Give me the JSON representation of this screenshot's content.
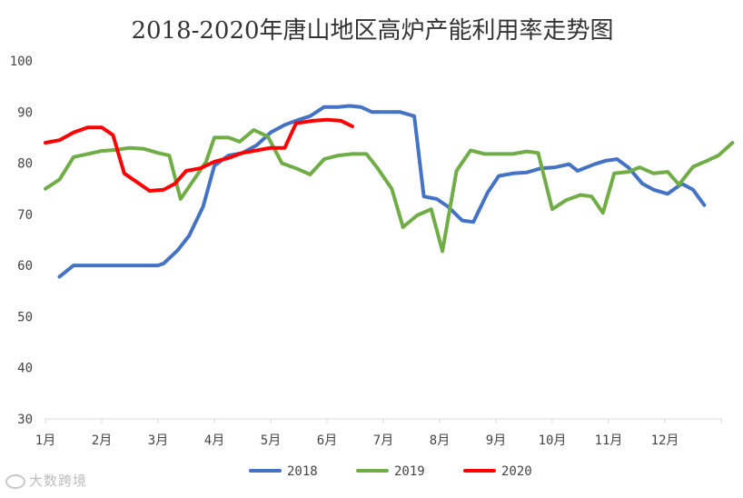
{
  "chart_data": {
    "type": "line",
    "title": "2018-2020年唐山地区高炉产能利用率走势图",
    "xlabel": "",
    "ylabel": "",
    "ylim": [
      30,
      100
    ],
    "yticks": [
      30,
      40,
      50,
      60,
      70,
      80,
      90,
      100
    ],
    "xlim": [
      1,
      13
    ],
    "month_labels": [
      "1月",
      "2月",
      "3月",
      "4月",
      "5月",
      "6月",
      "7月",
      "8月",
      "9月",
      "10月",
      "11月",
      "12月"
    ],
    "grid": false,
    "legend_position": "bottom",
    "series": [
      {
        "name": "2018",
        "color": "#4472c4",
        "points": [
          [
            1.25,
            57.8
          ],
          [
            1.5,
            60.0
          ],
          [
            1.75,
            60.0
          ],
          [
            2.0,
            60.0
          ],
          [
            2.25,
            60.0
          ],
          [
            2.5,
            60.0
          ],
          [
            2.75,
            60.0
          ],
          [
            3.0,
            60.0
          ],
          [
            3.1,
            60.4
          ],
          [
            3.35,
            63.0
          ],
          [
            3.55,
            65.8
          ],
          [
            3.8,
            71.5
          ],
          [
            4.0,
            79.5
          ],
          [
            4.25,
            81.5
          ],
          [
            4.5,
            82.0
          ],
          [
            4.75,
            83.5
          ],
          [
            5.0,
            86.0
          ],
          [
            5.25,
            87.5
          ],
          [
            5.5,
            88.5
          ],
          [
            5.7,
            89.2
          ],
          [
            5.95,
            91.0
          ],
          [
            6.2,
            91.0
          ],
          [
            6.4,
            91.2
          ],
          [
            6.6,
            91.0
          ],
          [
            6.8,
            90.0
          ],
          [
            7.05,
            90.0
          ],
          [
            7.3,
            90.0
          ],
          [
            7.55,
            89.2
          ],
          [
            7.72,
            73.5
          ],
          [
            7.95,
            73.0
          ],
          [
            8.15,
            71.5
          ],
          [
            8.4,
            68.8
          ],
          [
            8.6,
            68.5
          ],
          [
            8.85,
            74.2
          ],
          [
            9.05,
            77.5
          ],
          [
            9.3,
            78.0
          ],
          [
            9.55,
            78.2
          ],
          [
            9.8,
            79.0
          ],
          [
            10.05,
            79.2
          ],
          [
            10.3,
            79.8
          ],
          [
            10.45,
            78.5
          ],
          [
            10.75,
            79.8
          ],
          [
            10.95,
            80.5
          ],
          [
            11.15,
            80.8
          ],
          [
            11.35,
            79.2
          ],
          [
            11.6,
            76.0
          ],
          [
            11.8,
            74.8
          ],
          [
            12.05,
            74.0
          ],
          [
            12.3,
            76.0
          ],
          [
            12.5,
            74.8
          ],
          [
            12.7,
            71.8
          ]
        ]
      },
      {
        "name": "2019",
        "color": "#70ad47",
        "points": [
          [
            1.0,
            75.0
          ],
          [
            1.25,
            76.8
          ],
          [
            1.5,
            81.2
          ],
          [
            1.75,
            81.8
          ],
          [
            2.0,
            82.4
          ],
          [
            2.25,
            82.6
          ],
          [
            2.5,
            83.0
          ],
          [
            2.75,
            82.8
          ],
          [
            3.0,
            82.0
          ],
          [
            3.2,
            81.5
          ],
          [
            3.4,
            73.0
          ],
          [
            3.65,
            77.0
          ],
          [
            3.85,
            80.2
          ],
          [
            4.0,
            85.0
          ],
          [
            4.25,
            85.0
          ],
          [
            4.45,
            84.2
          ],
          [
            4.7,
            86.5
          ],
          [
            4.95,
            85.2
          ],
          [
            5.2,
            80.0
          ],
          [
            5.45,
            79.0
          ],
          [
            5.7,
            77.8
          ],
          [
            5.95,
            80.8
          ],
          [
            6.2,
            81.5
          ],
          [
            6.45,
            81.8
          ],
          [
            6.7,
            81.8
          ],
          [
            6.9,
            79.0
          ],
          [
            7.15,
            75.0
          ],
          [
            7.35,
            67.5
          ],
          [
            7.6,
            69.8
          ],
          [
            7.85,
            71.0
          ],
          [
            8.05,
            62.8
          ],
          [
            8.3,
            78.5
          ],
          [
            8.55,
            82.5
          ],
          [
            8.8,
            81.8
          ],
          [
            9.05,
            81.8
          ],
          [
            9.3,
            81.8
          ],
          [
            9.55,
            82.3
          ],
          [
            9.75,
            82.0
          ],
          [
            10.0,
            71.0
          ],
          [
            10.25,
            72.8
          ],
          [
            10.5,
            73.8
          ],
          [
            10.7,
            73.5
          ],
          [
            10.9,
            70.3
          ],
          [
            11.1,
            78.0
          ],
          [
            11.35,
            78.3
          ],
          [
            11.55,
            79.2
          ],
          [
            11.8,
            78.0
          ],
          [
            12.05,
            78.3
          ],
          [
            12.25,
            75.8
          ],
          [
            12.5,
            79.3
          ],
          [
            12.75,
            80.5
          ],
          [
            12.95,
            81.5
          ],
          [
            13.2,
            84.0
          ]
        ]
      },
      {
        "name": "2020",
        "color": "#ff0000",
        "points": [
          [
            1.0,
            84.0
          ],
          [
            1.25,
            84.5
          ],
          [
            1.5,
            86.0
          ],
          [
            1.75,
            87.0
          ],
          [
            2.0,
            87.0
          ],
          [
            2.2,
            85.5
          ],
          [
            2.4,
            78.0
          ],
          [
            2.6,
            76.5
          ],
          [
            2.85,
            74.6
          ],
          [
            3.1,
            74.8
          ],
          [
            3.3,
            76.0
          ],
          [
            3.5,
            78.5
          ],
          [
            3.75,
            79.0
          ],
          [
            4.0,
            80.3
          ],
          [
            4.25,
            81.0
          ],
          [
            4.5,
            82.0
          ],
          [
            4.75,
            82.5
          ],
          [
            5.0,
            83.0
          ],
          [
            5.25,
            83.0
          ],
          [
            5.45,
            87.8
          ],
          [
            5.75,
            88.3
          ],
          [
            6.0,
            88.5
          ],
          [
            6.25,
            88.3
          ],
          [
            6.45,
            87.2
          ]
        ]
      }
    ]
  },
  "watermark": {
    "text": "大数跨境"
  }
}
